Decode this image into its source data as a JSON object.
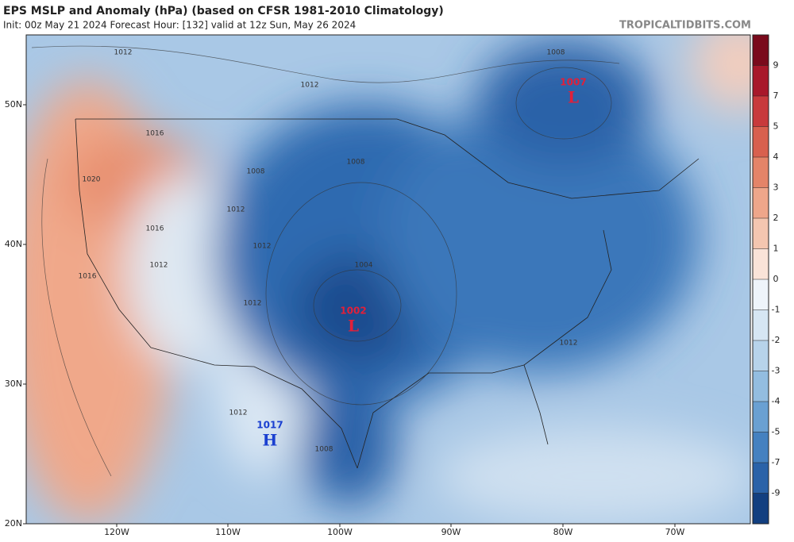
{
  "header": {
    "title": "EPS MSLP and Anomaly (hPa) (based on CFSR 1981-2010 Climatology)",
    "subtitle": "Init: 00z May 21 2024   Forecast Hour: [132]   valid at 12z Sun, May 26 2024",
    "watermark": "TROPICALTIDBITS.COM"
  },
  "map": {
    "latitude_labels": [
      "50N",
      "40N",
      "30N",
      "20N"
    ],
    "longitude_labels": [
      "120W",
      "110W",
      "100W",
      "90W",
      "80W",
      "70W"
    ],
    "contour_labels": [
      "1012",
      "1012",
      "1016",
      "1020",
      "1008",
      "1008",
      "1012",
      "1016",
      "1012",
      "1012",
      "1004",
      "1016",
      "1012",
      "1012",
      "1008",
      "1008",
      "1012"
    ],
    "pressure_centers": [
      {
        "value": "1007",
        "symbol": "L"
      },
      {
        "value": "1002",
        "symbol": "L"
      },
      {
        "value": "1017",
        "symbol": "H"
      }
    ]
  },
  "colorbar": {
    "ticks": [
      9,
      7,
      5,
      4,
      3,
      2,
      1,
      0,
      -1,
      -2,
      -3,
      -4,
      -5,
      -7,
      -9
    ]
  }
}
